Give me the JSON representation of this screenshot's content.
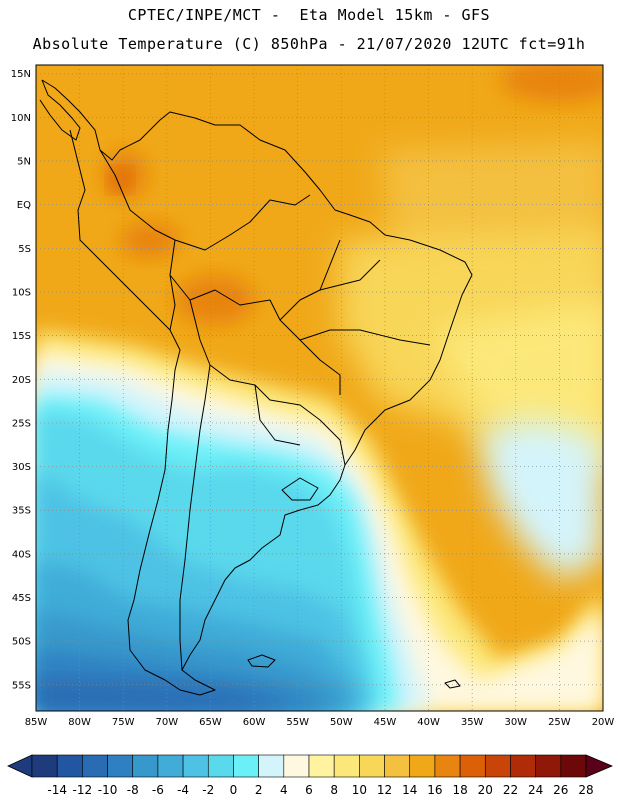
{
  "header": {
    "line1": "CPTEC/INPE/MCT -  Eta Model 15km - GFS",
    "line2": "Absolute Temperature (C) 850hPa - 21/07/2020 12UTC fct=91h"
  },
  "map": {
    "lat_labels": [
      "15N",
      "10N",
      "5N",
      "EQ",
      "5S",
      "10S",
      "15S",
      "20S",
      "25S",
      "30S",
      "35S",
      "40S",
      "45S",
      "50S",
      "55S"
    ],
    "lon_labels": [
      "85W",
      "80W",
      "75W",
      "70W",
      "65W",
      "60W",
      "55W",
      "50W",
      "45W",
      "40W",
      "35W",
      "30W",
      "25W",
      "20W"
    ],
    "extent": {
      "lon_min": -85,
      "lon_max": -20,
      "lat_min": -58,
      "lat_max": 16
    },
    "gridlines": "dotted"
  },
  "colorbar": {
    "labels": [
      "-14",
      "-12",
      "-10",
      "-8",
      "-6",
      "-4",
      "-2",
      "0",
      "2",
      "4",
      "6",
      "8",
      "10",
      "12",
      "14",
      "16",
      "18",
      "20",
      "22",
      "24",
      "26",
      "28"
    ],
    "unit": "C",
    "colors": [
      "#1e3c7c",
      "#2356a0",
      "#2a6cb4",
      "#2e80c0",
      "#3798cc",
      "#41acd8",
      "#4ec2e4",
      "#5ad8ec",
      "#6cf0f8",
      "#d4f4fc",
      "#fff8e0",
      "#fff3a0",
      "#fce87a",
      "#f8d658",
      "#f4c040",
      "#f0a818",
      "#e88410",
      "#dc6008",
      "#c84408",
      "#b02c08",
      "#901808",
      "#6c0808"
    ]
  }
}
